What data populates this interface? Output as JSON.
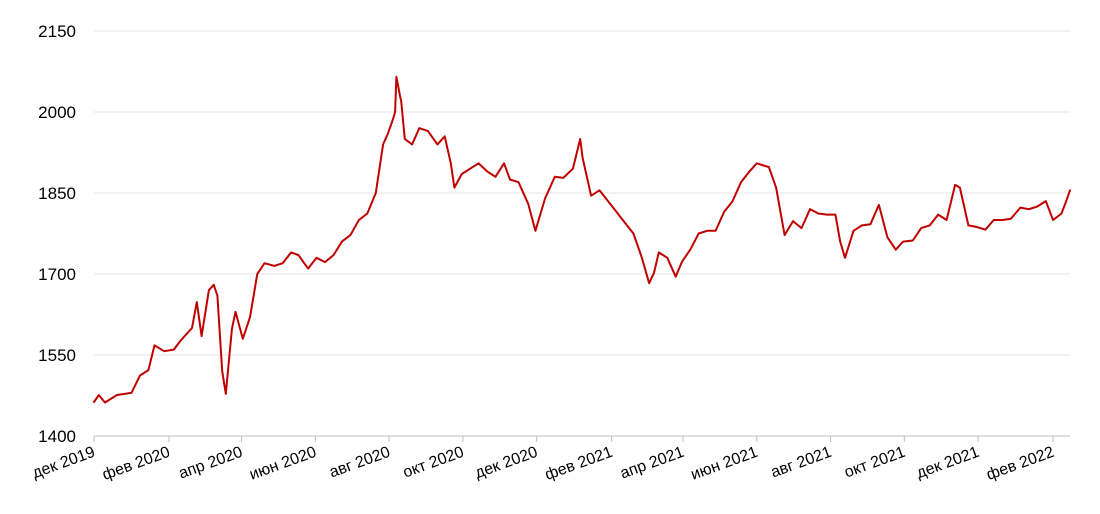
{
  "chart_data": {
    "type": "line",
    "title": "",
    "xlabel": "",
    "ylabel": "",
    "ylim": [
      1400,
      2150
    ],
    "yticks": [
      1400,
      1550,
      1700,
      1850,
      2000,
      2150
    ],
    "ytick_labels": [
      "1400",
      "1550",
      "1700",
      "1850",
      "2000",
      "2150"
    ],
    "xlim": [
      "2019-12-01",
      "2022-02-15"
    ],
    "xticks": [
      "2019-12-01",
      "2020-02-01",
      "2020-04-01",
      "2020-06-01",
      "2020-08-01",
      "2020-10-01",
      "2020-12-01",
      "2021-02-01",
      "2021-04-01",
      "2021-06-01",
      "2021-08-01",
      "2021-10-01",
      "2021-12-01",
      "2022-02-01"
    ],
    "xtick_labels": [
      "дек 2019",
      "фев 2020",
      "апр 2020",
      "июн 2020",
      "авг 2020",
      "окт 2020",
      "дек 2020",
      "фев 2021",
      "апр 2021",
      "июн 2021",
      "авг 2021",
      "окт 2021",
      "дек 2021",
      "фев 2022"
    ],
    "grid": true,
    "legend": "none",
    "colors": {
      "line": "#c00000",
      "grid": "#e6e6e6",
      "axis": "#bfbfbf"
    },
    "series": [
      {
        "x": [
          "2019-12-01",
          "2019-12-05",
          "2019-12-10",
          "2019-12-20",
          "2020-01-01",
          "2020-01-08",
          "2020-01-15",
          "2020-01-20",
          "2020-01-28",
          "2020-02-05",
          "2020-02-10",
          "2020-02-14",
          "2020-02-20",
          "2020-02-24",
          "2020-02-28",
          "2020-03-05",
          "2020-03-09",
          "2020-03-12",
          "2020-03-16",
          "2020-03-19",
          "2020-03-24",
          "2020-03-27",
          "2020-04-02",
          "2020-04-08",
          "2020-04-14",
          "2020-04-20",
          "2020-04-28",
          "2020-05-05",
          "2020-05-12",
          "2020-05-18",
          "2020-05-26",
          "2020-06-02",
          "2020-06-09",
          "2020-06-16",
          "2020-06-23",
          "2020-06-30",
          "2020-07-07",
          "2020-07-14",
          "2020-07-21",
          "2020-07-27",
          "2020-07-31",
          "2020-08-04",
          "2020-08-06",
          "2020-08-07",
          "2020-08-10",
          "2020-08-11",
          "2020-08-14",
          "2020-08-20",
          "2020-08-26",
          "2020-09-02",
          "2020-09-10",
          "2020-09-16",
          "2020-09-21",
          "2020-09-24",
          "2020-09-30",
          "2020-10-07",
          "2020-10-14",
          "2020-10-21",
          "2020-10-28",
          "2020-11-04",
          "2020-11-09",
          "2020-11-16",
          "2020-11-24",
          "2020-11-30",
          "2020-12-08",
          "2020-12-16",
          "2020-12-23",
          "2020-12-31",
          "2021-01-06",
          "2021-01-08",
          "2021-01-15",
          "2021-01-22",
          "2021-01-29",
          "2021-02-05",
          "2021-02-12",
          "2021-02-19",
          "2021-02-26",
          "2021-03-04",
          "2021-03-08",
          "2021-03-12",
          "2021-03-19",
          "2021-03-26",
          "2021-03-31",
          "2021-04-07",
          "2021-04-14",
          "2021-04-21",
          "2021-04-28",
          "2021-05-05",
          "2021-05-12",
          "2021-05-19",
          "2021-05-26",
          "2021-06-01",
          "2021-06-08",
          "2021-06-11",
          "2021-06-17",
          "2021-06-24",
          "2021-07-01",
          "2021-07-08",
          "2021-07-15",
          "2021-07-22",
          "2021-07-29",
          "2021-08-05",
          "2021-08-09",
          "2021-08-13",
          "2021-08-20",
          "2021-08-27",
          "2021-09-03",
          "2021-09-10",
          "2021-09-17",
          "2021-09-24",
          "2021-09-30",
          "2021-10-08",
          "2021-10-15",
          "2021-10-22",
          "2021-10-29",
          "2021-11-05",
          "2021-11-12",
          "2021-11-16",
          "2021-11-23",
          "2021-11-30",
          "2021-12-07",
          "2021-12-14",
          "2021-12-21",
          "2021-12-28",
          "2022-01-05",
          "2022-01-12",
          "2022-01-19",
          "2022-01-26",
          "2022-02-01",
          "2022-02-08",
          "2022-02-11",
          "2022-02-15"
        ],
        "values": [
          1463,
          1476,
          1462,
          1476,
          1480,
          1512,
          1522,
          1568,
          1557,
          1560,
          1575,
          1585,
          1600,
          1648,
          1585,
          1670,
          1680,
          1660,
          1520,
          1478,
          1598,
          1630,
          1580,
          1620,
          1700,
          1720,
          1715,
          1720,
          1740,
          1735,
          1710,
          1730,
          1722,
          1735,
          1760,
          1772,
          1800,
          1812,
          1850,
          1940,
          1960,
          1985,
          2000,
          2065,
          2030,
          2020,
          1950,
          1940,
          1970,
          1965,
          1940,
          1955,
          1905,
          1860,
          1885,
          1895,
          1905,
          1890,
          1880,
          1905,
          1875,
          1870,
          1830,
          1780,
          1840,
          1880,
          1878,
          1895,
          1950,
          1915,
          1845,
          1855,
          1835,
          1815,
          1795,
          1775,
          1730,
          1683,
          1702,
          1740,
          1730,
          1695,
          1722,
          1745,
          1775,
          1780,
          1780,
          1815,
          1835,
          1870,
          1890,
          1905,
          1900,
          1898,
          1860,
          1772,
          1798,
          1785,
          1820,
          1812,
          1810,
          1810,
          1760,
          1730,
          1780,
          1790,
          1792,
          1828,
          1768,
          1745,
          1760,
          1762,
          1785,
          1790,
          1810,
          1800,
          1865,
          1860,
          1790,
          1787,
          1782,
          1800,
          1800,
          1802,
          1823,
          1820,
          1825,
          1835,
          1800,
          1812,
          1830,
          1855
        ]
      }
    ]
  }
}
